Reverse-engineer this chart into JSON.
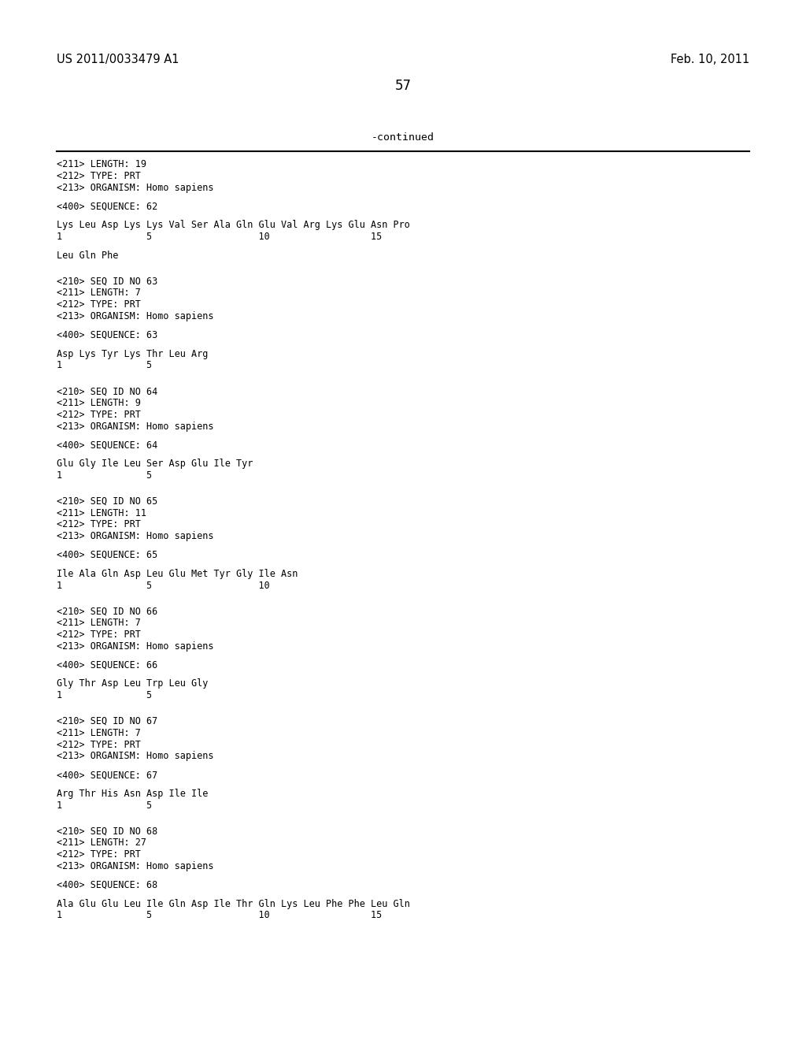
{
  "header_left": "US 2011/0033479 A1",
  "header_right": "Feb. 10, 2011",
  "page_number": "57",
  "continued_label": "-continued",
  "bg_color": "#ffffff",
  "text_color": "#000000",
  "font_size_header": 10.5,
  "font_size_body": 8.5,
  "font_size_page": 12,
  "blocks": [
    {
      "lines": [
        "<211> LENGTH: 19",
        "<212> TYPE: PRT",
        "<213> ORGANISM: Homo sapiens",
        "",
        "<400> SEQUENCE: 62",
        "",
        "Lys Leu Asp Lys Lys Val Ser Ala Gln Glu Val Arg Lys Glu Asn Pro",
        "1               5                   10                  15",
        "",
        "Leu Gln Phe",
        "",
        ""
      ]
    },
    {
      "lines": [
        "<210> SEQ ID NO 63",
        "<211> LENGTH: 7",
        "<212> TYPE: PRT",
        "<213> ORGANISM: Homo sapiens",
        "",
        "<400> SEQUENCE: 63",
        "",
        "Asp Lys Tyr Lys Thr Leu Arg",
        "1               5",
        "",
        ""
      ]
    },
    {
      "lines": [
        "<210> SEQ ID NO 64",
        "<211> LENGTH: 9",
        "<212> TYPE: PRT",
        "<213> ORGANISM: Homo sapiens",
        "",
        "<400> SEQUENCE: 64",
        "",
        "Glu Gly Ile Leu Ser Asp Glu Ile Tyr",
        "1               5",
        "",
        ""
      ]
    },
    {
      "lines": [
        "<210> SEQ ID NO 65",
        "<211> LENGTH: 11",
        "<212> TYPE: PRT",
        "<213> ORGANISM: Homo sapiens",
        "",
        "<400> SEQUENCE: 65",
        "",
        "Ile Ala Gln Asp Leu Glu Met Tyr Gly Ile Asn",
        "1               5                   10",
        "",
        ""
      ]
    },
    {
      "lines": [
        "<210> SEQ ID NO 66",
        "<211> LENGTH: 7",
        "<212> TYPE: PRT",
        "<213> ORGANISM: Homo sapiens",
        "",
        "<400> SEQUENCE: 66",
        "",
        "Gly Thr Asp Leu Trp Leu Gly",
        "1               5",
        "",
        ""
      ]
    },
    {
      "lines": [
        "<210> SEQ ID NO 67",
        "<211> LENGTH: 7",
        "<212> TYPE: PRT",
        "<213> ORGANISM: Homo sapiens",
        "",
        "<400> SEQUENCE: 67",
        "",
        "Arg Thr His Asn Asp Ile Ile",
        "1               5",
        "",
        ""
      ]
    },
    {
      "lines": [
        "<210> SEQ ID NO 68",
        "<211> LENGTH: 27",
        "<212> TYPE: PRT",
        "<213> ORGANISM: Homo sapiens",
        "",
        "<400> SEQUENCE: 68",
        "",
        "Ala Glu Glu Leu Ile Gln Asp Ile Thr Gln Lys Leu Phe Phe Leu Gln",
        "1               5                   10                  15"
      ]
    }
  ]
}
